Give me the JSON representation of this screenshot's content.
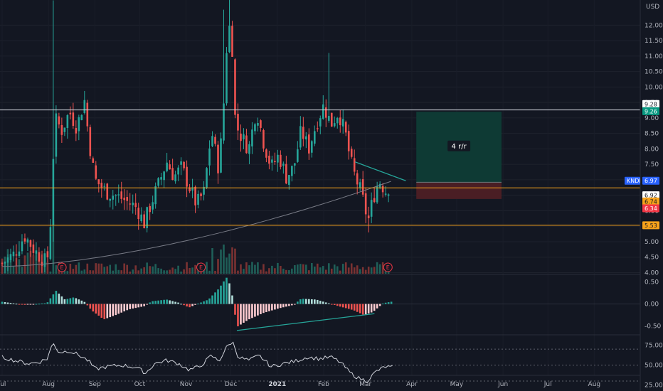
{
  "header": {
    "currency": "USD"
  },
  "chart_data": {
    "type": "candlestick",
    "price_axis": {
      "range": [
        3.85,
        12.95
      ],
      "ticks": [
        "12.00",
        "11.50",
        "11.00",
        "10.50",
        "10.00",
        "9.50",
        "9.00",
        "8.50",
        "8.00",
        "7.50",
        "7.00",
        "6.50",
        "6.00",
        "5.50",
        "5.00",
        "4.50",
        "4.00"
      ]
    },
    "time_axis": {
      "labels": [
        {
          "label": "Jul",
          "t": 0
        },
        {
          "label": "Aug",
          "t": 31
        },
        {
          "label": "Sep",
          "t": 62
        },
        {
          "label": "Oct",
          "t": 92
        },
        {
          "label": "Nov",
          "t": 123
        },
        {
          "label": "Dec",
          "t": 153
        },
        {
          "label": "2021",
          "t": 184
        },
        {
          "label": "Feb",
          "t": 215
        },
        {
          "label": "Mar",
          "t": 243
        },
        {
          "label": "Apr",
          "t": 274
        },
        {
          "label": "May",
          "t": 304
        },
        {
          "label": "Jun",
          "t": 335
        },
        {
          "label": "Jul",
          "t": 365
        },
        {
          "label": "Aug",
          "t": 396
        }
      ],
      "range": [
        0,
        422
      ]
    },
    "horizontal_lines": [
      {
        "price": 9.26,
        "color": "#d1d4dc"
      },
      {
        "price": 6.74,
        "color": "#f7a21b"
      },
      {
        "price": 5.53,
        "color": "#f7a21b"
      }
    ],
    "price_tags": [
      {
        "text": "9.28",
        "price": 9.45,
        "bg": "#ffffff",
        "fg": "#131722"
      },
      {
        "text": "9.26",
        "price": 9.22,
        "bg": "#089981",
        "fg": "#ffffff"
      },
      {
        "text": "6.97",
        "price": 6.97,
        "bg": "#2962ff",
        "fg": "#ffffff"
      },
      {
        "text": "6.92",
        "price": 6.5,
        "bg": "#ffffff",
        "fg": "#131722"
      },
      {
        "text": "6.74",
        "price": 6.3,
        "bg": "#f7a21b",
        "fg": "#131722"
      },
      {
        "text": "6.34",
        "price": 6.08,
        "bg": "#f23645",
        "fg": "#ffffff"
      },
      {
        "text": "5.53",
        "price": 5.53,
        "bg": "#f7a21b",
        "fg": "#131722"
      }
    ],
    "symbol_tag": {
      "text": "KNDI",
      "price": 6.97
    },
    "position": {
      "label": "4 r/r",
      "entry": 6.92,
      "target": 9.2,
      "stop": 6.38,
      "t_start": 277,
      "t_end": 334
    },
    "trendlines": [
      {
        "t1": 236,
        "p1": 7.58,
        "t2": 270,
        "p2": 6.97,
        "color": "#26a69a"
      }
    ],
    "earnings_markers": [
      {
        "label": "E",
        "t": 40
      },
      {
        "label": "E",
        "t": 133
      },
      {
        "label": "E",
        "t": 258
      }
    ],
    "volume_series": "bars, red/green matching candles",
    "moving_average": "gray, rising from 4.2 (Jul) to 6.9 (Mar)",
    "macd_histogram": {
      "ticks": [
        "0.50",
        "0.00",
        "-0.50"
      ],
      "range": [
        -0.65,
        0.62
      ],
      "divergence_line": {
        "t1": 157,
        "v1": -0.6,
        "t2": 249,
        "v2": -0.22,
        "color": "#26a69a"
      }
    },
    "rsi": {
      "ticks": [
        "75.00",
        "50.00",
        "25.00"
      ],
      "range": [
        22,
        88
      ],
      "levels": [
        70,
        50,
        30
      ]
    }
  }
}
